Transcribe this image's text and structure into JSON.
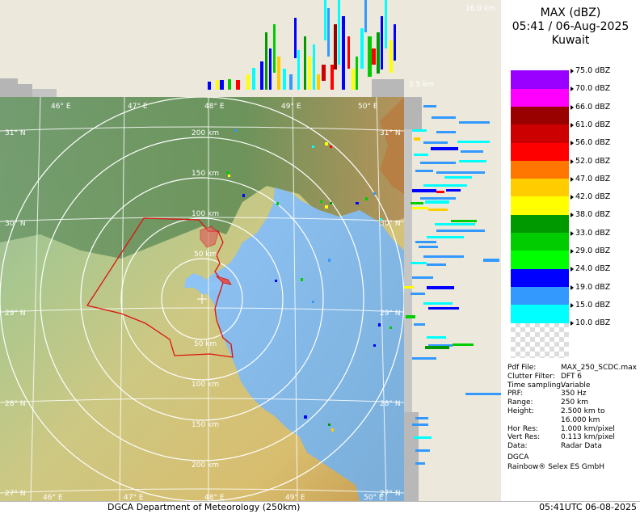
{
  "header": {
    "product": "MAX (dBZ)",
    "datetime": "05:41 / 06-Aug-2025",
    "site": "Kuwait"
  },
  "legend": [
    {
      "label": "75.0 dBZ",
      "color": "#ffffff"
    },
    {
      "label": "70.0 dBZ",
      "color": "#9900ff"
    },
    {
      "label": "66.0 dBZ",
      "color": "#ff00ff"
    },
    {
      "label": "61.0 dBZ",
      "color": "#990000"
    },
    {
      "label": "56.0 dBZ",
      "color": "#cc0000"
    },
    {
      "label": "52.0 dBZ",
      "color": "#ff0000"
    },
    {
      "label": "47.0 dBZ",
      "color": "#ff7700"
    },
    {
      "label": "42.0 dBZ",
      "color": "#ffcc00"
    },
    {
      "label": "38.0 dBZ",
      "color": "#ffff00"
    },
    {
      "label": "33.0 dBZ",
      "color": "#009900"
    },
    {
      "label": "29.0 dBZ",
      "color": "#00cc00"
    },
    {
      "label": "24.0 dBZ",
      "color": "#00ff00"
    },
    {
      "label": "19.0 dBZ",
      "color": "#0000ff"
    },
    {
      "label": "15.0 dBZ",
      "color": "#3399ff"
    },
    {
      "label": "10.0 dBZ",
      "color": "#00ffff"
    }
  ],
  "meta": [
    {
      "key": "Pdf File:",
      "value": "MAX_250_SCDC.max"
    },
    {
      "key": "Clutter Filter:",
      "value": "DFT 6"
    },
    {
      "key": "Time sampling:",
      "value": "Variable"
    },
    {
      "key": "PRF:",
      "value": "350 Hz"
    },
    {
      "key": "Range:",
      "value": "250 km"
    },
    {
      "key": "Height:",
      "value": "2.500 km to"
    },
    {
      "key": "",
      "value": "16.000 km"
    },
    {
      "key": "Hor Res:",
      "value": "1.000 km/pixel"
    },
    {
      "key": "Vert Res:",
      "value": "0.113 km/pixel"
    },
    {
      "key": "Data:",
      "value": "Radar Data"
    }
  ],
  "credits": {
    "org": "DGCA",
    "vendor": "Rainbow® Selex ES GmbH"
  },
  "footer": {
    "left": "DGCA Department of Meteorology (250km)",
    "right": "05:41UTC 06-08-2025"
  },
  "map": {
    "lon_labels": [
      "46° E",
      "47° E",
      "48° E",
      "49° E",
      "50° E"
    ],
    "lat_labels": [
      "31° N",
      "30° N",
      "29° N",
      "28° N",
      "27° N"
    ],
    "range_labels_north": [
      "200 km",
      "150 km",
      "100 km",
      "50 km"
    ],
    "range_labels_south": [
      "50 km",
      "100 km",
      "150 km",
      "200 km"
    ],
    "range_rings_km": [
      50,
      100,
      150,
      200,
      250
    ],
    "colors": {
      "sea": "#8ec3f5",
      "ring": "#ffffff",
      "border": "#dd1111",
      "panel": "#ece9dc"
    }
  },
  "sections": {
    "top_height_max": "16.0 km",
    "top_height_min": "2.5 km"
  }
}
